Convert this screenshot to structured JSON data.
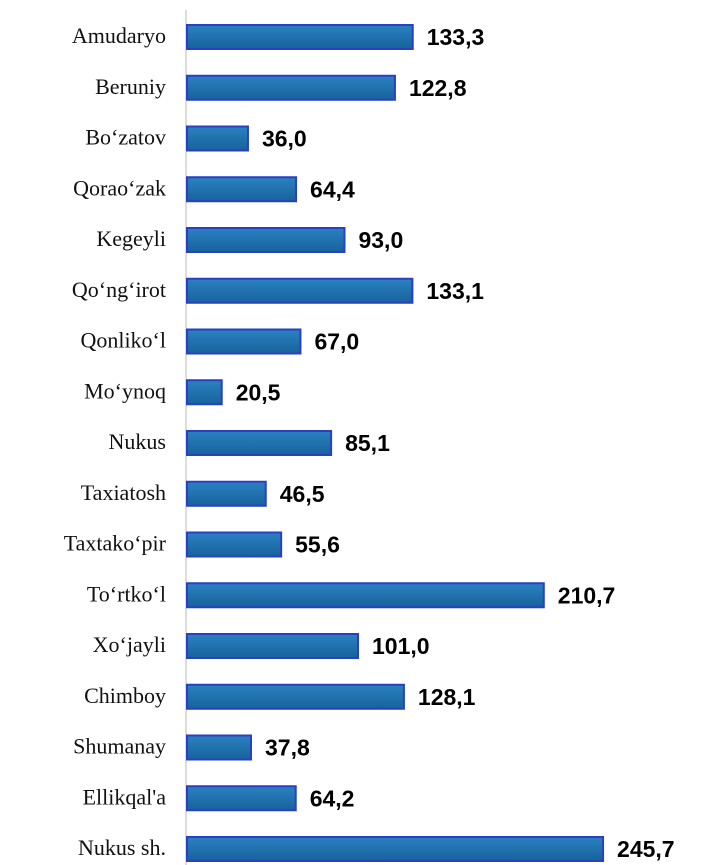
{
  "chart_data": {
    "type": "bar",
    "orientation": "horizontal",
    "categories": [
      "Amudaryo",
      "Beruniy",
      "Bo‘zatov",
      "Qorao‘zak",
      "Kegeyli",
      "Qo‘ng‘irot",
      "Qonliko‘l",
      "Mo‘ynoq",
      "Nukus",
      "Taxiatosh",
      "Taxtako‘pir",
      "To‘rtko‘l",
      "Xo‘jayli",
      "Chimboy",
      "Shumanay",
      "Ellikqal'a",
      "Nukus sh."
    ],
    "values": [
      133.3,
      122.8,
      36.0,
      64.4,
      93.0,
      133.1,
      67.0,
      20.5,
      85.1,
      46.5,
      55.6,
      210.7,
      101.0,
      128.1,
      37.8,
      64.2,
      245.7
    ],
    "value_labels": [
      "133,3",
      "122,8",
      "36,0",
      "64,4",
      "93,0",
      "133,1",
      "67,0",
      "20,5",
      "85,1",
      "46,5",
      "55,6",
      "210,7",
      "101,0",
      "128,1",
      "37,8",
      "64,2",
      "245,7"
    ],
    "color": "#1f6dab",
    "edge_color": "#2a3fc4",
    "xlim": [
      0,
      300
    ]
  }
}
